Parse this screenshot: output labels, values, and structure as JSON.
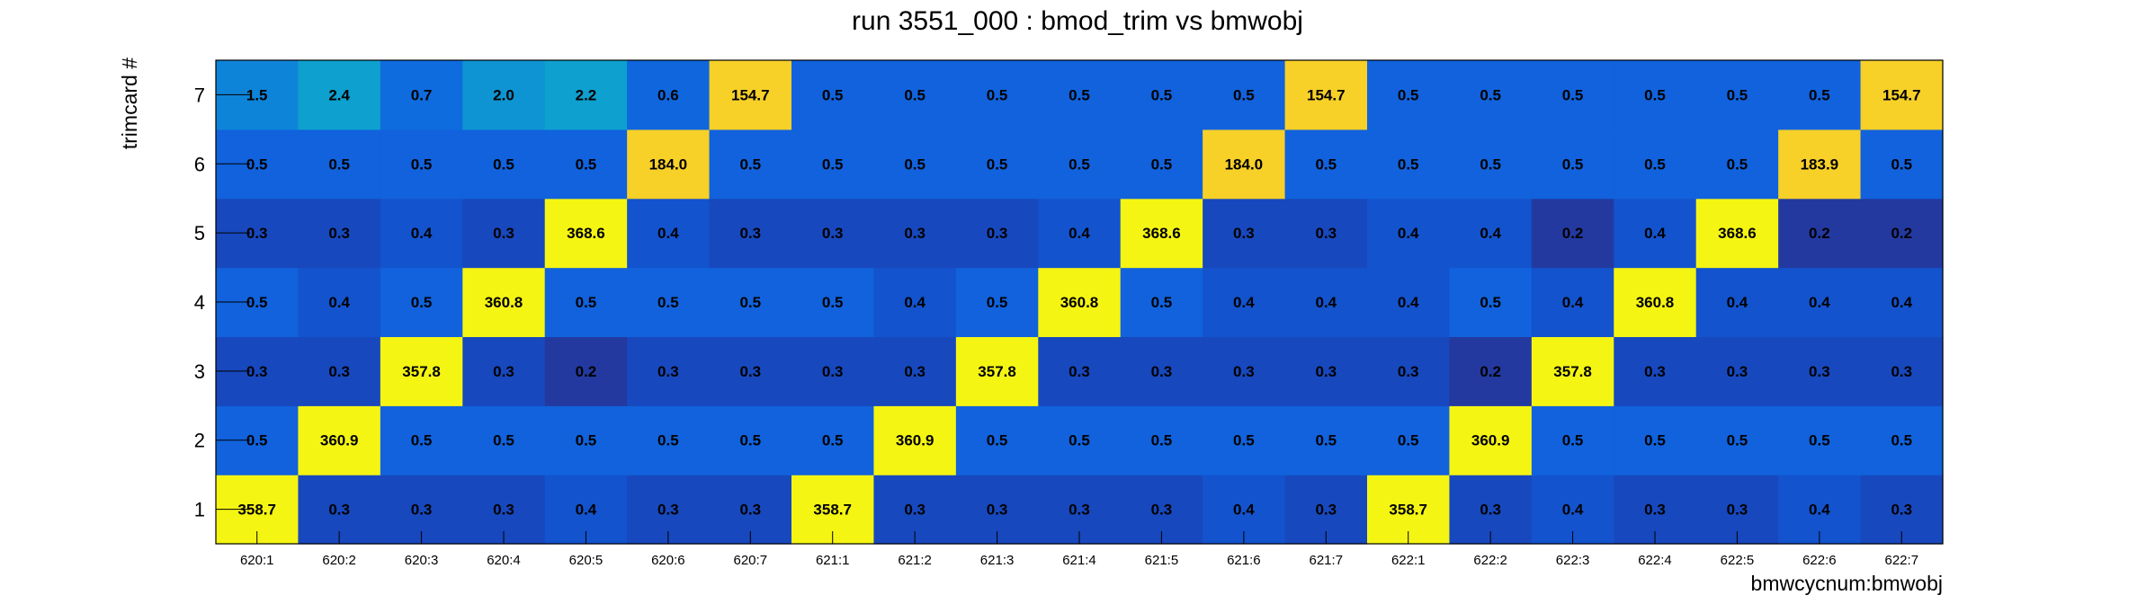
{
  "chart_data": {
    "type": "heatmap",
    "title": "run 3551_000 : bmod_trim vs bmwobj",
    "xlabel": "bmwcycnum:bmwobj",
    "ylabel": "trimcard #",
    "x_categories": [
      "620:1",
      "620:2",
      "620:3",
      "620:4",
      "620:5",
      "620:6",
      "620:7",
      "621:1",
      "621:2",
      "621:3",
      "621:4",
      "621:5",
      "621:6",
      "621:7",
      "622:1",
      "622:2",
      "622:3",
      "622:4",
      "622:5",
      "622:6",
      "622:7"
    ],
    "y_categories": [
      "1",
      "2",
      "3",
      "4",
      "5",
      "6",
      "7"
    ],
    "values": [
      [
        "358.7",
        "0.3",
        "0.3",
        "0.3",
        "0.4",
        "0.3",
        "0.3",
        "358.7",
        "0.3",
        "0.3",
        "0.3",
        "0.3",
        "0.4",
        "0.3",
        "358.7",
        "0.3",
        "0.4",
        "0.3",
        "0.3",
        "0.4",
        "0.3"
      ],
      [
        "0.5",
        "360.9",
        "0.5",
        "0.5",
        "0.5",
        "0.5",
        "0.5",
        "0.5",
        "360.9",
        "0.5",
        "0.5",
        "0.5",
        "0.5",
        "0.5",
        "0.5",
        "360.9",
        "0.5",
        "0.5",
        "0.5",
        "0.5",
        "0.5"
      ],
      [
        "0.3",
        "0.3",
        "357.8",
        "0.3",
        "0.2",
        "0.3",
        "0.3",
        "0.3",
        "0.3",
        "357.8",
        "0.3",
        "0.3",
        "0.3",
        "0.3",
        "0.3",
        "0.2",
        "357.8",
        "0.3",
        "0.3",
        "0.3",
        "0.3"
      ],
      [
        "0.5",
        "0.4",
        "0.5",
        "360.8",
        "0.5",
        "0.5",
        "0.5",
        "0.5",
        "0.4",
        "0.5",
        "360.8",
        "0.5",
        "0.4",
        "0.4",
        "0.4",
        "0.5",
        "0.4",
        "360.8",
        "0.4",
        "0.4",
        "0.4"
      ],
      [
        "0.3",
        "0.3",
        "0.4",
        "0.3",
        "368.6",
        "0.4",
        "0.3",
        "0.3",
        "0.3",
        "0.3",
        "0.4",
        "368.6",
        "0.3",
        "0.3",
        "0.4",
        "0.4",
        "0.2",
        "0.4",
        "368.6",
        "0.2",
        "0.2"
      ],
      [
        "0.5",
        "0.5",
        "0.5",
        "0.5",
        "0.5",
        "184.0",
        "0.5",
        "0.5",
        "0.5",
        "0.5",
        "0.5",
        "0.5",
        "184.0",
        "0.5",
        "0.5",
        "0.5",
        "0.5",
        "0.5",
        "0.5",
        "183.9",
        "0.5"
      ],
      [
        "1.5",
        "2.4",
        "0.7",
        "2.0",
        "2.2",
        "0.6",
        "154.7",
        "0.5",
        "0.5",
        "0.5",
        "0.5",
        "0.5",
        "0.5",
        "154.7",
        "0.5",
        "0.5",
        "0.5",
        "0.5",
        "0.5",
        "0.5",
        "154.7"
      ]
    ],
    "grid": false,
    "legend": "none"
  }
}
